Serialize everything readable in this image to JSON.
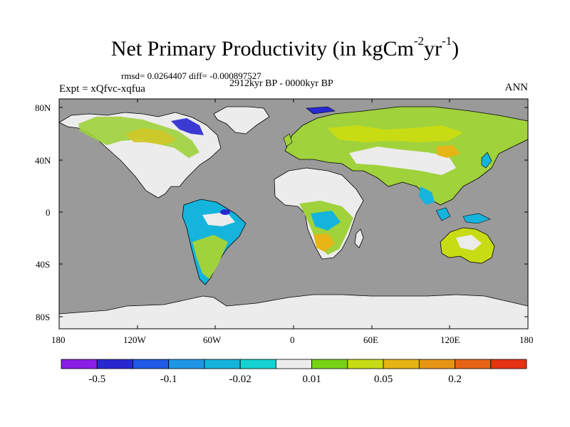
{
  "title": {
    "main": "Net Primary Productivity (in kgCm",
    "sup1": "-2",
    "mid": "yr",
    "sup2": "-1",
    "end": ")"
  },
  "stats_line": "rmsd= 0.0264407 diff= -0.000897527",
  "period": "2912kyr BP - 0000kyr BP",
  "experiment": "Expt = xQfvc-xqfua",
  "season": "ANN",
  "lat_labels": [
    "80N",
    "40N",
    "0",
    "40S",
    "80S"
  ],
  "lon_labels": [
    "180",
    "120W",
    "60W",
    "0",
    "60E",
    "120E",
    "180"
  ],
  "colors": {
    "ocean": "#9a9a9a",
    "ice": "#ececec",
    "coast": "#000000"
  },
  "colorbar": {
    "colors": [
      "#8a1ee6",
      "#2828d2",
      "#1e5ae6",
      "#1e96e6",
      "#14b4dc",
      "#14d2d2",
      "#ececec",
      "#78d214",
      "#c8dc14",
      "#e6b414",
      "#e69614",
      "#e66414",
      "#e63214"
    ],
    "labels": [
      "-0.5",
      "-0.1",
      "-0.02",
      "0.01",
      "0.05",
      "0.2"
    ]
  }
}
